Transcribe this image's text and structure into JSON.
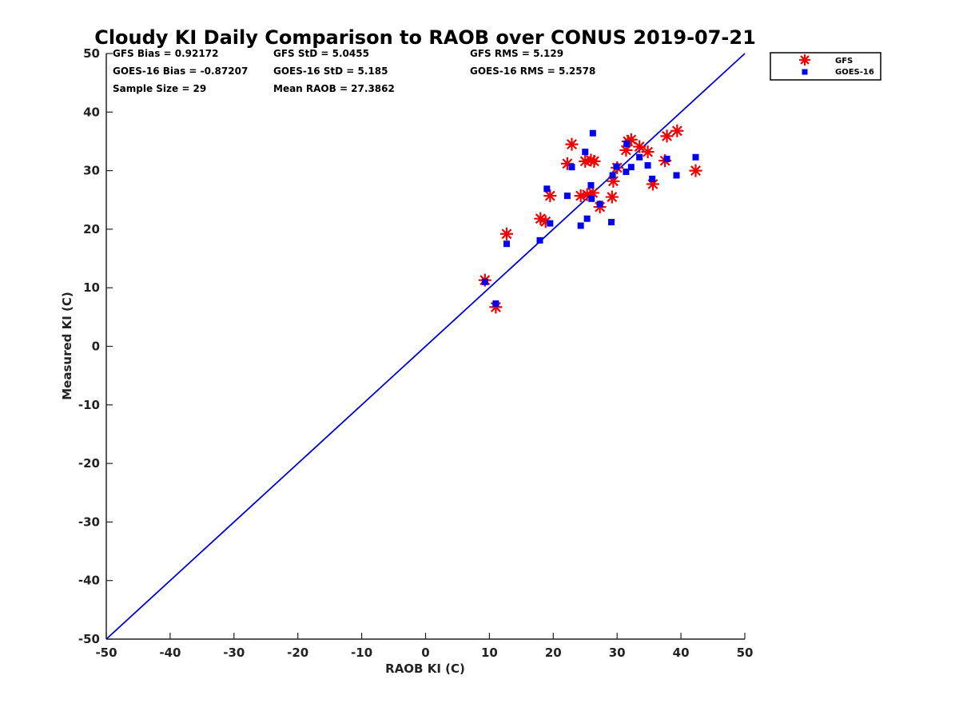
{
  "chart_data": {
    "type": "scatter",
    "title": "Cloudy KI Daily Comparison to RAOB over CONUS 2019-07-21",
    "xlabel": "RAOB KI (C)",
    "ylabel": "Measured KI (C)",
    "xlim": [
      -50,
      50
    ],
    "ylim": [
      -50,
      50
    ],
    "xticks": [
      "-50",
      "-40",
      "-30",
      "-20",
      "-10",
      "0",
      "10",
      "20",
      "30",
      "40",
      "50"
    ],
    "yticks": [
      "50",
      "40",
      "30",
      "20",
      "10",
      "0",
      "-10",
      "-20",
      "-30",
      "-40",
      "-50"
    ],
    "grid": false,
    "legend_position": "outside top-right",
    "reference_line": {
      "from": [
        -50,
        -50
      ],
      "to": [
        50,
        50
      ],
      "color": "#0000dd"
    },
    "stats": {
      "gfs_bias": "GFS Bias = 0.92172",
      "gfs_std": "GFS StD = 5.0455",
      "gfs_rms": "GFS RMS = 5.129",
      "goes_bias": "GOES-16 Bias = -0.87207",
      "goes_std": "GOES-16 StD = 5.185",
      "goes_rms": "GOES-16 RMS = 5.2578",
      "sample_size": "Sample Size = 29",
      "mean_raob": "Mean RAOB = 27.3862"
    },
    "series": [
      {
        "name": "GFS",
        "marker": "asterisk",
        "color": "#ee0000",
        "points": [
          [
            9.3,
            11.3
          ],
          [
            11.0,
            6.7
          ],
          [
            12.7,
            19.2
          ],
          [
            18.0,
            21.8
          ],
          [
            18.8,
            21.3
          ],
          [
            19.5,
            25.7
          ],
          [
            22.2,
            31.2
          ],
          [
            22.9,
            34.5
          ],
          [
            24.3,
            25.7
          ],
          [
            25.0,
            31.6
          ],
          [
            25.3,
            25.9
          ],
          [
            25.9,
            31.8
          ],
          [
            26.2,
            26.2
          ],
          [
            26.4,
            31.6
          ],
          [
            27.3,
            23.8
          ],
          [
            29.2,
            25.5
          ],
          [
            29.4,
            28.2
          ],
          [
            30.0,
            30.5
          ],
          [
            31.4,
            33.5
          ],
          [
            31.7,
            35.0
          ],
          [
            32.2,
            35.3
          ],
          [
            33.5,
            34.1
          ],
          [
            34.8,
            33.2
          ],
          [
            35.6,
            27.7
          ],
          [
            37.5,
            31.7
          ],
          [
            37.8,
            35.9
          ],
          [
            39.4,
            36.8
          ],
          [
            42.3,
            30.0
          ]
        ]
      },
      {
        "name": "GOES-16",
        "marker": "square",
        "color": "#0000ee",
        "points": [
          [
            9.3,
            11.0
          ],
          [
            11.0,
            7.3
          ],
          [
            12.7,
            17.5
          ],
          [
            17.9,
            18.1
          ],
          [
            19.0,
            26.9
          ],
          [
            19.5,
            21.0
          ],
          [
            22.2,
            25.7
          ],
          [
            22.9,
            30.6
          ],
          [
            24.3,
            20.6
          ],
          [
            25.0,
            33.2
          ],
          [
            25.3,
            21.8
          ],
          [
            25.9,
            27.5
          ],
          [
            26.0,
            25.2
          ],
          [
            26.2,
            36.4
          ],
          [
            27.3,
            24.3
          ],
          [
            29.1,
            21.2
          ],
          [
            29.3,
            29.2
          ],
          [
            29.9,
            30.7
          ],
          [
            31.4,
            29.8
          ],
          [
            31.5,
            34.6
          ],
          [
            32.2,
            30.6
          ],
          [
            33.5,
            32.3
          ],
          [
            34.8,
            30.9
          ],
          [
            35.5,
            28.6
          ],
          [
            37.8,
            32.0
          ],
          [
            39.3,
            29.2
          ],
          [
            42.3,
            32.3
          ]
        ]
      }
    ]
  }
}
